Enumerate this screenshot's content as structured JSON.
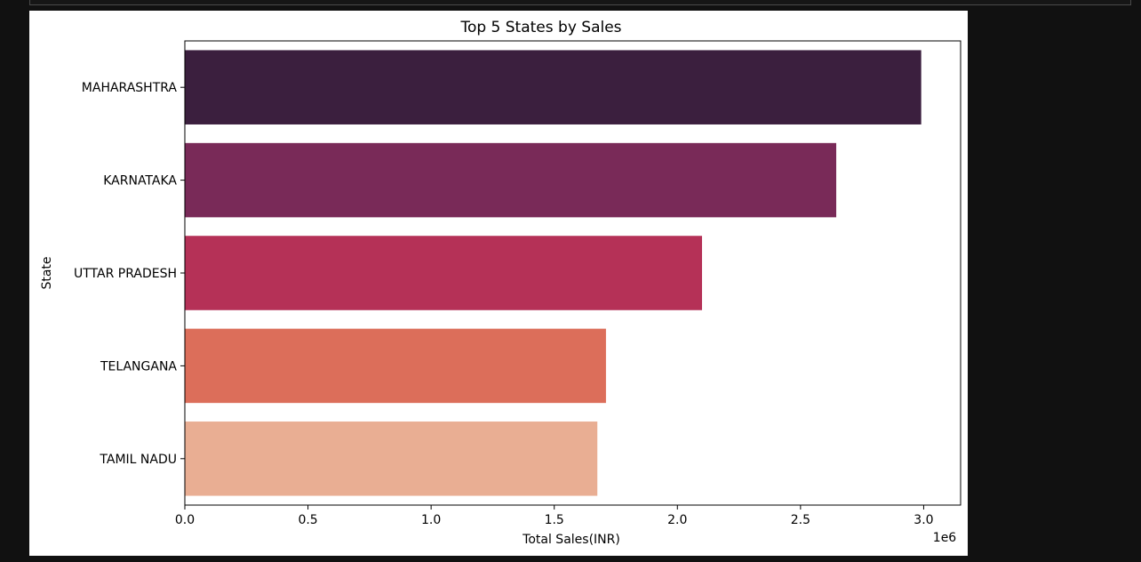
{
  "chart_data": {
    "type": "bar",
    "orientation": "horizontal",
    "title": "Top 5 States by Sales",
    "xlabel": "Total Sales(INR)",
    "ylabel": "State",
    "x_offset_label": "1e6",
    "categories": [
      "MAHARASHTRA",
      "KARNATAKA",
      "UTTAR PRADESH",
      "TELANGANA",
      "TAMIL NADU"
    ],
    "values": [
      2.99,
      2.645,
      2.1,
      1.71,
      1.675
    ],
    "colors": [
      "#3b1f3e",
      "#792a58",
      "#b53157",
      "#dc6e5a",
      "#e9ae93"
    ],
    "xlim": [
      0,
      3.15
    ],
    "xticks": [
      0.0,
      0.5,
      1.0,
      1.5,
      2.0,
      2.5,
      3.0
    ],
    "xtick_labels": [
      "0.0",
      "0.5",
      "1.0",
      "1.5",
      "2.0",
      "2.5",
      "3.0"
    ],
    "grid": false,
    "legend": false
  }
}
